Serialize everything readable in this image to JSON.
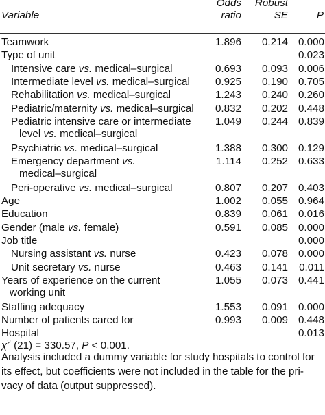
{
  "header": {
    "variable": "Variable",
    "odds_line1": "Odds",
    "odds_line2": "ratio",
    "se_line1": "Robust",
    "se_line2": "SE",
    "p": "P"
  },
  "rows": [
    {
      "indent": 0,
      "label_lines": [
        "Teamwork"
      ],
      "odds": "1.896",
      "se": "0.214",
      "p": "0.000"
    },
    {
      "indent": 0,
      "label_lines": [
        "Type of unit"
      ],
      "odds": "",
      "se": "",
      "p": "0.023"
    },
    {
      "indent": 1,
      "label_lines": [
        "Intensive care |vs.| medical–surgical"
      ],
      "odds": "0.693",
      "se": "0.093",
      "p": "0.006"
    },
    {
      "indent": 1,
      "label_lines": [
        "Intermediate level |vs.| medical–surgical"
      ],
      "odds": "0.925",
      "se": "0.190",
      "p": "0.705"
    },
    {
      "indent": 1,
      "label_lines": [
        "Rehabilitation |vs.| medical–surgical"
      ],
      "odds": "1.243",
      "se": "0.240",
      "p": "0.260"
    },
    {
      "indent": 1,
      "label_lines": [
        "Pediatric/maternity |vs.| medical–surgical"
      ],
      "odds": "0.832",
      "se": "0.202",
      "p": "0.448"
    },
    {
      "indent": 1,
      "label_lines": [
        "Pediatric intensive care or intermediate",
        "level |vs.| medical–surgical"
      ],
      "odds": "1.049",
      "se": "0.244",
      "p": "0.839"
    },
    {
      "indent": 1,
      "label_lines": [
        "Psychiatric |vs.| medical–surgical"
      ],
      "odds": "1.388",
      "se": "0.300",
      "p": "0.129"
    },
    {
      "indent": 1,
      "label_lines": [
        "Emergency department |vs.|",
        "medical–surgical"
      ],
      "odds": "1.114",
      "se": "0.252",
      "p": "0.633"
    },
    {
      "indent": 1,
      "label_lines": [
        "Peri-operative |vs.| medical–surgical"
      ],
      "odds": "0.807",
      "se": "0.207",
      "p": "0.403"
    },
    {
      "indent": 0,
      "label_lines": [
        "Age"
      ],
      "odds": "1.002",
      "se": "0.055",
      "p": "0.964"
    },
    {
      "indent": 0,
      "label_lines": [
        "Education"
      ],
      "odds": "0.839",
      "se": "0.061",
      "p": "0.016"
    },
    {
      "indent": 0,
      "label_lines": [
        "Gender (male |vs.| female)"
      ],
      "odds": "0.591",
      "se": "0.085",
      "p": "0.000"
    },
    {
      "indent": 0,
      "label_lines": [
        "Job title"
      ],
      "odds": "",
      "se": "",
      "p": "0.000"
    },
    {
      "indent": 1,
      "label_lines": [
        "Nursing assistant |vs.| nurse"
      ],
      "odds": "0.423",
      "se": "0.078",
      "p": "0.000"
    },
    {
      "indent": 1,
      "label_lines": [
        "Unit secretary |vs.| nurse"
      ],
      "odds": "0.463",
      "se": "0.141",
      "p": "0.011"
    },
    {
      "indent": 0,
      "label_lines": [
        "Years of experience on the current",
        "working unit"
      ],
      "odds": "1.055",
      "se": "0.073",
      "p": "0.441"
    },
    {
      "indent": 0,
      "label_lines": [
        "Staffing adequacy"
      ],
      "odds": "1.553",
      "se": "0.091",
      "p": "0.000"
    },
    {
      "indent": 0,
      "label_lines": [
        "Number of patients cared for"
      ],
      "odds": "0.993",
      "se": "0.009",
      "p": "0.448"
    },
    {
      "indent": 0,
      "label_lines": [
        "Hospital"
      ],
      "odds": "",
      "se": "",
      "p": "0.013"
    }
  ],
  "footnote": {
    "chi_symbol": "χ",
    "chi_sup": "2",
    "chi_rest": " (21) = 330.57, ",
    "chi_p": "P",
    "chi_tail": " < 0.001.",
    "note_lines": [
      "Analysis included a dummy variable for study hospitals to control for",
      "its effect, but coefficients were not included in the table for the pri-",
      "vacy of data (output suppressed)."
    ]
  }
}
